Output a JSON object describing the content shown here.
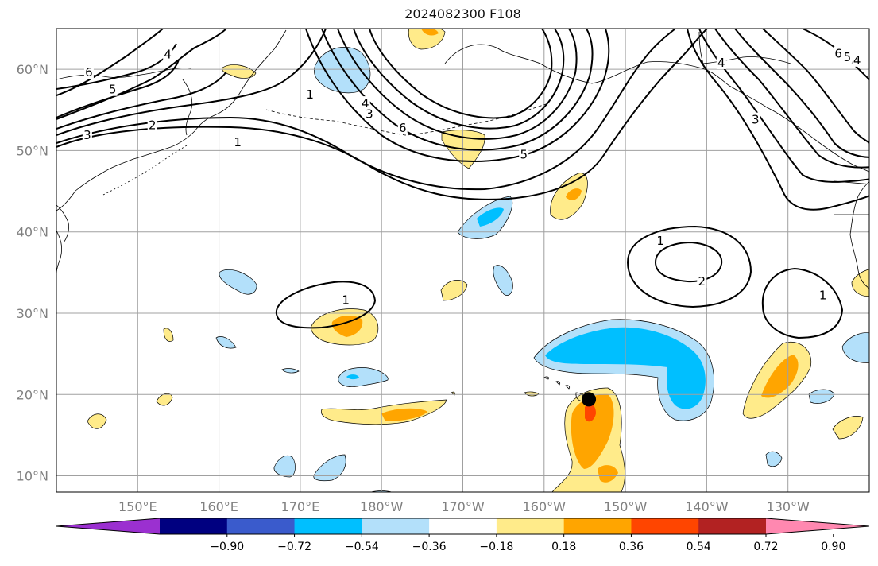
{
  "title": "2024082300 F108",
  "map": {
    "projection": "equirectangular",
    "lon_range": [
      140,
      240
    ],
    "lat_range": [
      8,
      65
    ],
    "grid": true,
    "coastlines": true,
    "lat_ticks": [
      {
        "value": 10,
        "label": "10°N"
      },
      {
        "value": 20,
        "label": "20°N"
      },
      {
        "value": 30,
        "label": "30°N"
      },
      {
        "value": 40,
        "label": "40°N"
      },
      {
        "value": 50,
        "label": "50°N"
      },
      {
        "value": 60,
        "label": "60°N"
      }
    ],
    "lon_ticks": [
      {
        "value": 150,
        "label": "150°E"
      },
      {
        "value": 160,
        "label": "160°E"
      },
      {
        "value": 170,
        "label": "170°E"
      },
      {
        "value": 180,
        "label": "180°W"
      },
      {
        "value": 190,
        "label": "170°W"
      },
      {
        "value": 200,
        "label": "160°W"
      },
      {
        "value": 210,
        "label": "150°W"
      },
      {
        "value": 220,
        "label": "140°W"
      },
      {
        "value": 230,
        "label": "130°W"
      }
    ],
    "marker": {
      "lon": 205.5,
      "lat": 19.4,
      "color": "#000000"
    }
  },
  "colorbar": {
    "colors": [
      "#9b30d0",
      "#000080",
      "#3a5bcc",
      "#00bfff",
      "#b3e0fa",
      "#ffffff",
      "#ffeb8a",
      "#ffa500",
      "#ff4500",
      "#b22222",
      "#ff88b0"
    ],
    "tick_labels": [
      "−0.90",
      "−0.72",
      "−0.54",
      "−0.36",
      "−0.18",
      "0.18",
      "0.36",
      "0.54",
      "0.72",
      "0.90"
    ],
    "extend": "both"
  },
  "contour_labels": [
    {
      "text": "1",
      "lon": 171.2,
      "lat": 56.9
    },
    {
      "text": "1",
      "lon": 162.3,
      "lat": 51.0
    },
    {
      "text": "2",
      "lon": 151.8,
      "lat": 53.1
    },
    {
      "text": "3",
      "lon": 143.8,
      "lat": 51.9
    },
    {
      "text": "5",
      "lon": 146.9,
      "lat": 57.5
    },
    {
      "text": "6",
      "lon": 144.0,
      "lat": 59.6
    },
    {
      "text": "4",
      "lon": 153.7,
      "lat": 61.8
    },
    {
      "text": "4",
      "lon": 178.0,
      "lat": 55.8
    },
    {
      "text": "3",
      "lon": 178.5,
      "lat": 54.5
    },
    {
      "text": "6",
      "lon": 182.6,
      "lat": 52.8
    },
    {
      "text": "5",
      "lon": 197.5,
      "lat": 49.5
    },
    {
      "text": "1",
      "lon": 175.6,
      "lat": 31.6
    },
    {
      "text": "1",
      "lon": 214.3,
      "lat": 38.9
    },
    {
      "text": "2",
      "lon": 219.4,
      "lat": 33.9
    },
    {
      "text": "1",
      "lon": 234.3,
      "lat": 32.2
    },
    {
      "text": "4",
      "lon": 221.8,
      "lat": 60.8
    },
    {
      "text": "3",
      "lon": 226.0,
      "lat": 53.8
    },
    {
      "text": "6",
      "lon": 236.2,
      "lat": 61.9
    },
    {
      "text": "5",
      "lon": 237.3,
      "lat": 61.5
    },
    {
      "text": "4",
      "lon": 238.5,
      "lat": 61.1
    }
  ]
}
